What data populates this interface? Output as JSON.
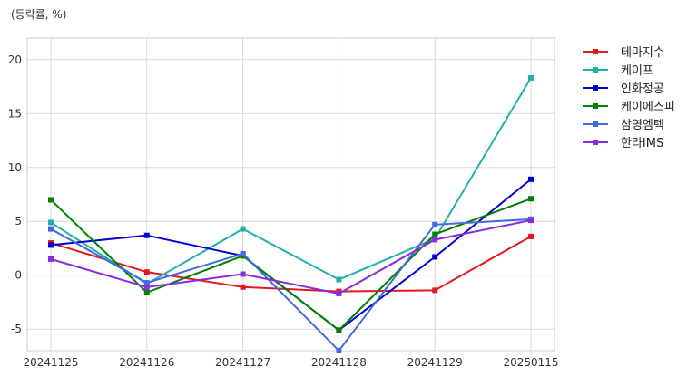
{
  "chart_data": {
    "type": "line",
    "title": "",
    "unit_label": "(등락률, %)",
    "xlabel": "",
    "ylabel": "",
    "categories": [
      "20241125",
      "20241126",
      "20241127",
      "20241128",
      "20241129",
      "20250115"
    ],
    "ylim": [
      -7,
      22
    ],
    "yticks": [
      -5,
      0,
      5,
      10,
      15,
      20
    ],
    "grid": true,
    "legend_position": "right",
    "series": [
      {
        "name": "테마지수",
        "color": "#e31a1c",
        "values": [
          3.0,
          0.3,
          -1.1,
          -1.5,
          -1.4,
          3.6
        ]
      },
      {
        "name": "케이프",
        "color": "#20b2aa",
        "values": [
          4.9,
          -0.8,
          4.3,
          -0.4,
          3.4,
          18.3
        ]
      },
      {
        "name": "인화정공",
        "color": "#0000cd",
        "values": [
          2.8,
          3.7,
          1.8,
          -5.1,
          1.7,
          8.9
        ]
      },
      {
        "name": "케이에스피",
        "color": "#008000",
        "values": [
          7.0,
          -1.6,
          1.8,
          -5.1,
          3.8,
          7.1
        ]
      },
      {
        "name": "삼영엠텍",
        "color": "#4169e1",
        "values": [
          4.3,
          -0.7,
          2.0,
          -7.0,
          4.7,
          5.2
        ]
      },
      {
        "name": "한라IMS",
        "color": "#8a2be2",
        "values": [
          1.5,
          -1.1,
          0.1,
          -1.7,
          3.3,
          5.1
        ]
      }
    ]
  }
}
